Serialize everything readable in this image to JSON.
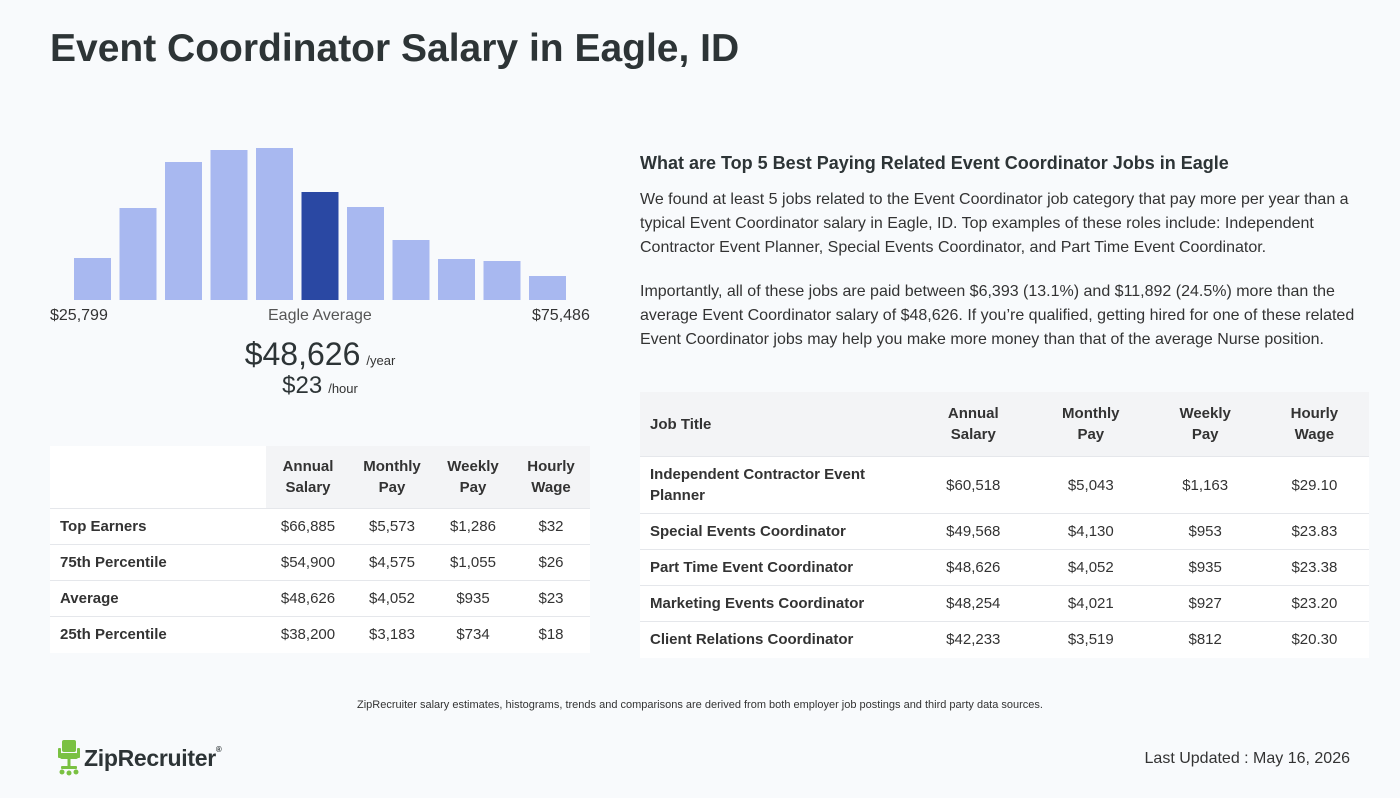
{
  "page": {
    "title": "Event Coordinator Salary in Eagle, ID"
  },
  "chart_data": {
    "type": "bar",
    "categories": [
      "1",
      "2",
      "3",
      "4",
      "5",
      "6",
      "7",
      "8",
      "9",
      "10",
      "11"
    ],
    "values": [
      42,
      92,
      138,
      150,
      152,
      108,
      93,
      60,
      41,
      39,
      24
    ],
    "highlight_index": 5,
    "colors": {
      "bar": "#a8b8f0",
      "highlight": "#2a48a3"
    },
    "x_min_label": "$25,799",
    "x_mid_label": "Eagle Average",
    "x_max_label": "$75,486"
  },
  "average": {
    "annual": "$48,626",
    "annual_unit": "/year",
    "hourly": "$23",
    "hourly_unit": "/hour"
  },
  "percentile_table": {
    "headers": [
      "Annual\nSalary",
      "Monthly\nPay",
      "Weekly\nPay",
      "Hourly\nWage"
    ],
    "rows": [
      {
        "label": "Top Earners",
        "values": [
          "$66,885",
          "$5,573",
          "$1,286",
          "$32"
        ]
      },
      {
        "label": "75th Percentile",
        "values": [
          "$54,900",
          "$4,575",
          "$1,055",
          "$26"
        ]
      },
      {
        "label": "Average",
        "values": [
          "$48,626",
          "$4,052",
          "$935",
          "$23"
        ]
      },
      {
        "label": "25th Percentile",
        "values": [
          "$38,200",
          "$3,183",
          "$734",
          "$18"
        ]
      }
    ]
  },
  "related": {
    "heading": "What are Top 5 Best Paying Related Event Coordinator Jobs in Eagle",
    "para1": "We found at least 5 jobs related to the Event Coordinator job category that pay more per year than a typical Event Coordinator salary in Eagle, ID. Top examples of these roles include: Independent Contractor Event Planner, Special Events Coordinator, and Part Time Event Coordinator.",
    "para2": "Importantly, all of these jobs are paid between $6,393 (13.1%) and $11,892 (24.5%) more than the average Event Coordinator salary of $48,626. If you’re qualified, getting hired for one of these related Event Coordinator jobs may help you make more money than that of the average Nurse position."
  },
  "jobs_table": {
    "headers": [
      "Job Title",
      "Annual\nSalary",
      "Monthly\nPay",
      "Weekly\nPay",
      "Hourly\nWage"
    ],
    "rows": [
      {
        "title": "Independent Contractor Event Planner",
        "values": [
          "$60,518",
          "$5,043",
          "$1,163",
          "$29.10"
        ]
      },
      {
        "title": "Special Events Coordinator",
        "values": [
          "$49,568",
          "$4,130",
          "$953",
          "$23.83"
        ]
      },
      {
        "title": "Part Time Event Coordinator",
        "values": [
          "$48,626",
          "$4,052",
          "$935",
          "$23.38"
        ]
      },
      {
        "title": "Marketing Events Coordinator",
        "values": [
          "$48,254",
          "$4,021",
          "$927",
          "$23.20"
        ]
      },
      {
        "title": "Client Relations Coordinator",
        "values": [
          "$42,233",
          "$3,519",
          "$812",
          "$20.30"
        ]
      }
    ]
  },
  "footer": {
    "note": "ZipRecruiter salary estimates, histograms, trends and comparisons are derived from both employer job postings and third party data sources.",
    "logo_text": "ZipRecruiter",
    "logo_mark": "®",
    "logo_color": "#7ac142",
    "updated": "Last Updated : May 16, 2026"
  }
}
